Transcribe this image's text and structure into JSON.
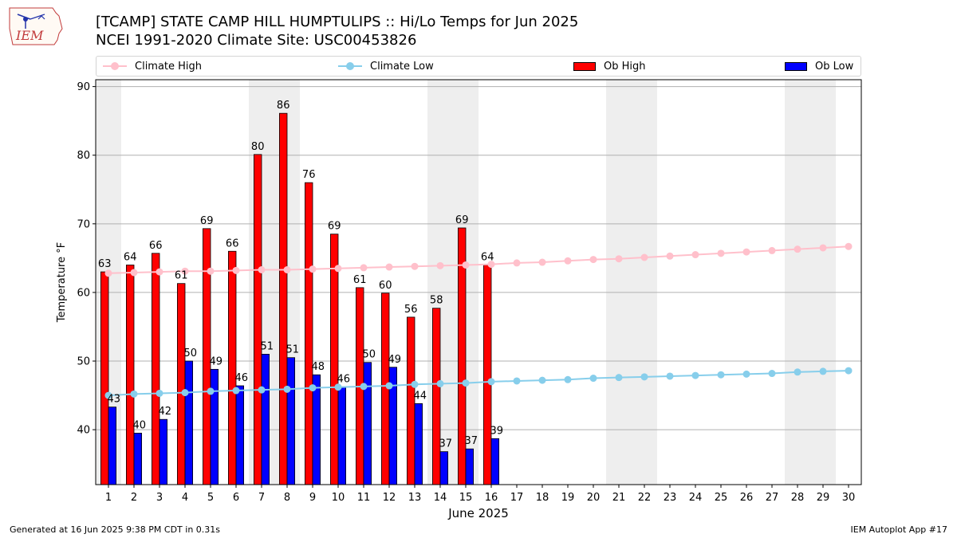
{
  "header": {
    "title_line1": "[TCAMP] STATE CAMP HILL HUMPTULIPS  :: Hi/Lo Temps for Jun 2025",
    "title_line2": "NCEI 1991-2020 Climate Site: USC00453826"
  },
  "logo": {
    "text": "IEM",
    "icon": "iem-iowa-logo-icon"
  },
  "footer": {
    "left": "Generated at 16 Jun 2025 9:38 PM CDT in 0.31s",
    "right": "IEM Autoplot App #17"
  },
  "legend": [
    {
      "label": "Climate High",
      "kind": "line",
      "color": "#ffc0cb"
    },
    {
      "label": "Climate Low",
      "kind": "line",
      "color": "#87ceeb"
    },
    {
      "label": "Ob High",
      "kind": "bar",
      "color": "#ff0000"
    },
    {
      "label": "Ob Low",
      "kind": "bar",
      "color": "#0000ff"
    }
  ],
  "chart_data": {
    "type": "bar",
    "xlabel": "June 2025",
    "ylabel": "Temperature °F",
    "ylim": [
      32,
      91
    ],
    "yticks": [
      40,
      50,
      60,
      70,
      80,
      90
    ],
    "grid": "horizontal",
    "legend_position": "top",
    "weekend_shading_color": "#eeeeee",
    "weekend_days": [
      1,
      7,
      8,
      14,
      15,
      21,
      22,
      28,
      29
    ],
    "days": [
      1,
      2,
      3,
      4,
      5,
      6,
      7,
      8,
      9,
      10,
      11,
      12,
      13,
      14,
      15,
      16,
      17,
      18,
      19,
      20,
      21,
      22,
      23,
      24,
      25,
      26,
      27,
      28,
      29,
      30
    ],
    "series": [
      {
        "name": "Ob High",
        "type": "bar",
        "color": "#ff0000",
        "values": [
          63.0,
          64.0,
          65.7,
          61.3,
          69.3,
          66.0,
          80.1,
          86.1,
          76.0,
          68.5,
          60.7,
          59.9,
          56.4,
          57.7,
          69.4,
          64.0
        ]
      },
      {
        "name": "Ob Low",
        "type": "bar",
        "color": "#0000ff",
        "values": [
          43.3,
          39.5,
          41.5,
          50.0,
          48.8,
          46.4,
          51.0,
          50.5,
          48.0,
          46.2,
          49.8,
          49.1,
          43.8,
          36.8,
          37.2,
          38.7
        ]
      },
      {
        "name": "Climate High",
        "type": "line",
        "color": "#ffc0cb",
        "values": [
          62.8,
          62.9,
          63.0,
          63.1,
          63.1,
          63.2,
          63.3,
          63.3,
          63.4,
          63.5,
          63.6,
          63.7,
          63.8,
          63.9,
          64.0,
          64.1,
          64.3,
          64.4,
          64.6,
          64.8,
          64.9,
          65.1,
          65.3,
          65.5,
          65.7,
          65.9,
          66.1,
          66.3,
          66.5,
          66.7
        ]
      },
      {
        "name": "Climate Low",
        "type": "line",
        "color": "#87ceeb",
        "values": [
          45.0,
          45.2,
          45.3,
          45.4,
          45.6,
          45.7,
          45.8,
          45.9,
          46.1,
          46.2,
          46.3,
          46.4,
          46.6,
          46.7,
          46.8,
          47.0,
          47.1,
          47.2,
          47.3,
          47.5,
          47.6,
          47.7,
          47.8,
          47.9,
          48.0,
          48.1,
          48.2,
          48.4,
          48.5,
          48.6
        ]
      }
    ],
    "data_labels": {
      "Ob High": [
        "63",
        "64",
        "66",
        "61",
        "69",
        "66",
        "80",
        "86",
        "76",
        "69",
        "61",
        "60",
        "56",
        "58",
        "69",
        "64"
      ],
      "Ob Low": [
        "43",
        "40",
        "42",
        "50",
        "49",
        "46",
        "51",
        "51",
        "48",
        "46",
        "50",
        "49",
        "44",
        "37",
        "37",
        "39"
      ]
    }
  }
}
